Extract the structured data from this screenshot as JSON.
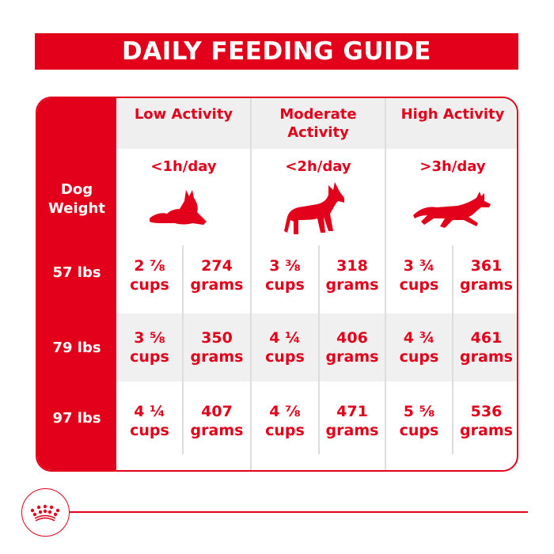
{
  "title": "DAILY FEEDING GUIDE",
  "row_header": "Dog Weight",
  "columns": [
    {
      "label": "Low Activity",
      "duration": "<1h/day",
      "icon": "lying-dog-icon"
    },
    {
      "label": "Moderate Activity",
      "duration": "<2h/day",
      "icon": "standing-dog-icon"
    },
    {
      "label": "High Activity",
      "duration": ">3h/day",
      "icon": "running-dog-icon"
    }
  ],
  "rows": [
    {
      "weight": "57 lbs",
      "values": [
        [
          "2 ⅞",
          "cups",
          "274",
          "grams"
        ],
        [
          "3 ⅜",
          "cups",
          "318",
          "grams"
        ],
        [
          "3 ¾",
          "cups",
          "361",
          "grams"
        ]
      ]
    },
    {
      "weight": "79 lbs",
      "values": [
        [
          "3 ⅝",
          "cups",
          "350",
          "grams"
        ],
        [
          "4 ¼",
          "cups",
          "406",
          "grams"
        ],
        [
          "4 ¾",
          "cups",
          "461",
          "grams"
        ]
      ]
    },
    {
      "weight": "97 lbs",
      "values": [
        [
          "4 ¼",
          "cups",
          "407",
          "grams"
        ],
        [
          "4 ⅞",
          "cups",
          "471",
          "grams"
        ],
        [
          "5 ⅝",
          "cups",
          "536",
          "grams"
        ]
      ]
    }
  ],
  "colors": {
    "brand_red": "#e2001a",
    "band_gray": "#f0f0f0"
  },
  "logo": "royal-canin-crown-icon"
}
